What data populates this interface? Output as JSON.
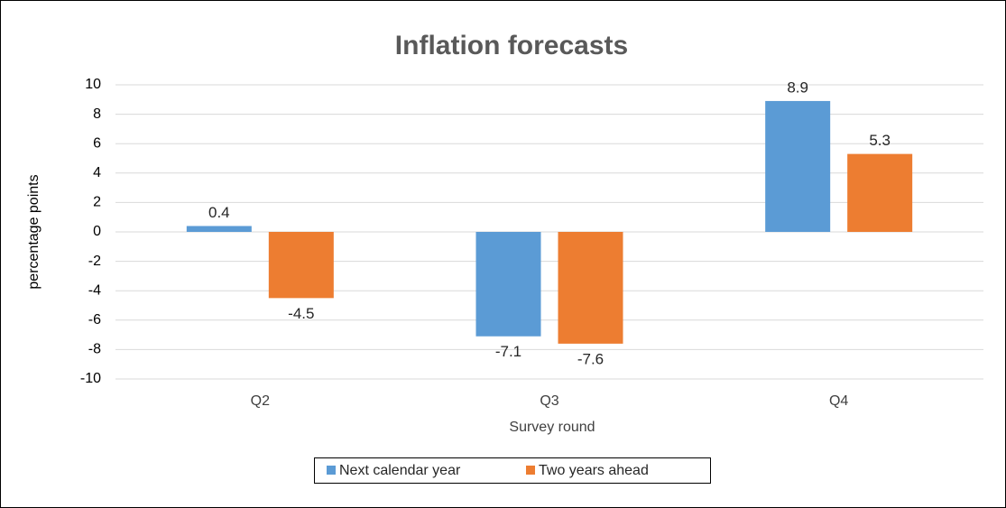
{
  "chart_data": {
    "type": "bar",
    "title": "Inflation forecasts",
    "x_label": "Survey round",
    "y_label": "percentage points",
    "categories": [
      "Q2",
      "Q3",
      "Q4"
    ],
    "series": [
      {
        "name": "Next calendar year",
        "color": "#5b9bd5",
        "values": [
          0.4,
          -7.1,
          8.9
        ]
      },
      {
        "name": "Two years ahead",
        "color": "#ed7d31",
        "values": [
          -4.5,
          -7.6,
          5.3
        ]
      }
    ],
    "ylim": [
      -10,
      10
    ],
    "yticks": [
      -10,
      -8,
      -6,
      -4,
      -2,
      0,
      2,
      4,
      6,
      8,
      10
    ],
    "grid": true,
    "legend": "bottom"
  }
}
